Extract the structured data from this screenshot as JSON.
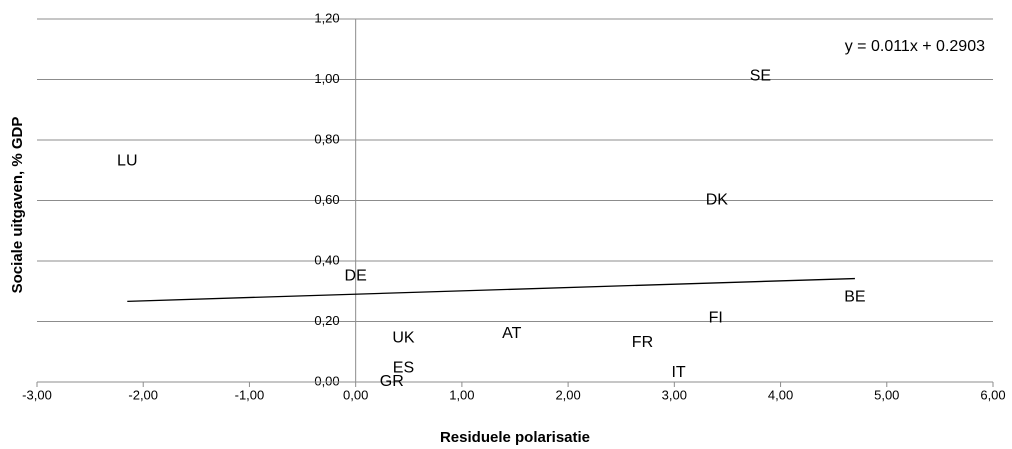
{
  "chart_data": {
    "type": "scatter",
    "x_label": "Residuele polarisatie",
    "y_label": "Sociale uitgaven, % GDP",
    "categories": [
      "LU",
      "SE",
      "DK",
      "DE",
      "BE",
      "FI",
      "UK",
      "AT",
      "FR",
      "IT",
      "ES",
      "GR"
    ],
    "x": [
      -2.15,
      3.81,
      3.4,
      0.0,
      4.7,
      3.39,
      0.45,
      1.47,
      2.7,
      3.04,
      0.45,
      0.34
    ],
    "values": [
      0.73,
      1.01,
      0.6,
      0.35,
      0.28,
      0.21,
      0.145,
      0.16,
      0.13,
      0.03,
      0.045,
      0.0
    ],
    "trendline": {
      "label": "y = 0.011x + 0.2903",
      "slope": 0.011,
      "intercept": 0.2903
    },
    "xlim": [
      -3,
      6
    ],
    "xticks": [
      {
        "value": -3,
        "label": "-3,00"
      },
      {
        "value": -2,
        "label": "-2,00"
      },
      {
        "value": -1,
        "label": "-1,00"
      },
      {
        "value": 0,
        "label": "0,00"
      },
      {
        "value": 1,
        "label": "1,00"
      },
      {
        "value": 2,
        "label": "2,00"
      },
      {
        "value": 3,
        "label": "3,00"
      },
      {
        "value": 4,
        "label": "4,00"
      },
      {
        "value": 5,
        "label": "5,00"
      },
      {
        "value": 6,
        "label": "6,00"
      }
    ],
    "ylim": [
      0,
      1.2
    ],
    "yticks": [
      {
        "value": 0,
        "label": "0,00"
      },
      {
        "value": 0.2,
        "label": "0,20"
      },
      {
        "value": 0.4,
        "label": "0,40"
      },
      {
        "value": 0.6,
        "label": "0,60"
      },
      {
        "value": 0.8,
        "label": "0,80"
      },
      {
        "value": 1.0,
        "label": "1,00"
      },
      {
        "value": 1.2,
        "label": "1,20"
      }
    ],
    "grid": true
  }
}
